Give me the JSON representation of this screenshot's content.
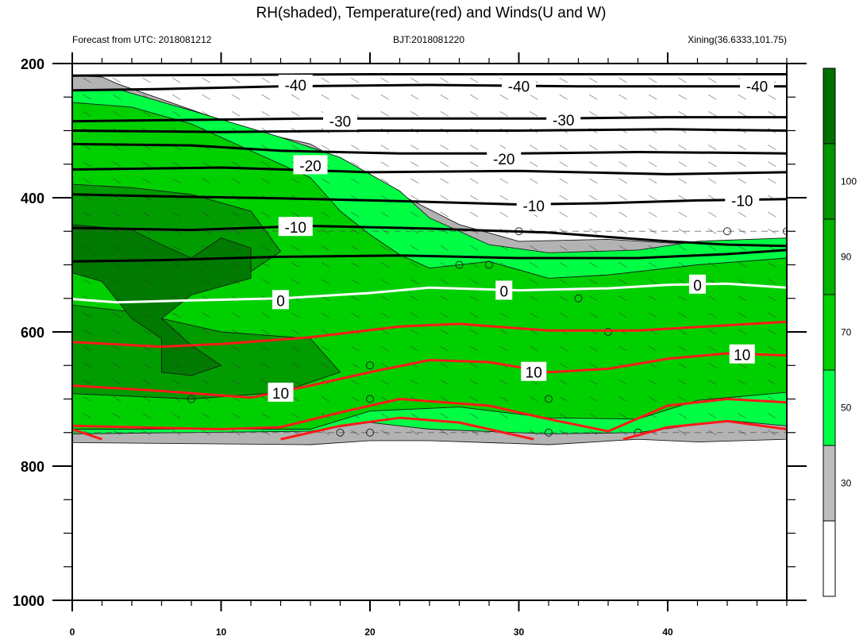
{
  "chart_data": {
    "type": "contour",
    "title": "RH(shaded), Temperature(red) and Winds(U and W)",
    "left_subtitle": "Forecast from UTC: 2018081212",
    "center_subtitle": "BJT:2018081220",
    "right_subtitle": "Xining(36.6333,101.75)",
    "xlim": [
      0,
      48
    ],
    "x_ticks": [
      0,
      10,
      20,
      30,
      40
    ],
    "ylim": [
      200,
      1000
    ],
    "y_ticks": [
      200,
      400,
      600,
      800,
      1000
    ],
    "colorbar": {
      "levels": [
        30,
        50,
        70,
        90,
        100
      ],
      "colors": [
        "#ffffff",
        "#bdbdbd",
        "#00ff44",
        "#00d000",
        "#00b400",
        "#009600",
        "#006f00"
      ]
    },
    "temperature_labels": [
      "-40",
      "-30",
      "-20",
      "-10",
      "0",
      "10"
    ],
    "temperature_contours": [
      {
        "label": "-40",
        "color": "black",
        "points": [
          [
            0,
            218
          ],
          [
            10,
            217
          ],
          [
            20,
            216
          ],
          [
            30,
            216
          ],
          [
            40,
            216
          ],
          [
            48,
            216
          ]
        ]
      },
      {
        "label": "-40",
        "color": "black",
        "points": [
          [
            0,
            240
          ],
          [
            6,
            238
          ],
          [
            14,
            234
          ],
          [
            24,
            232
          ],
          [
            34,
            234
          ],
          [
            42,
            234
          ],
          [
            48,
            234
          ]
        ]
      },
      {
        "label": "-30",
        "color": "black",
        "points": [
          [
            0,
            286
          ],
          [
            8,
            284
          ],
          [
            16,
            282
          ],
          [
            24,
            282
          ],
          [
            32,
            282
          ],
          [
            40,
            280
          ],
          [
            48,
            280
          ]
        ]
      },
      {
        "label": "-30",
        "color": "black",
        "points": [
          [
            0,
            300
          ],
          [
            10,
            302
          ],
          [
            20,
            300
          ],
          [
            30,
            300
          ],
          [
            40,
            298
          ],
          [
            48,
            300
          ]
        ]
      },
      {
        "label": "-20",
        "color": "black",
        "points": [
          [
            0,
            320
          ],
          [
            8,
            322
          ],
          [
            14,
            330
          ],
          [
            22,
            334
          ],
          [
            30,
            334
          ],
          [
            38,
            332
          ],
          [
            44,
            333
          ],
          [
            48,
            334
          ]
        ]
      },
      {
        "label": "-20",
        "color": "black",
        "points": [
          [
            0,
            358
          ],
          [
            10,
            355
          ],
          [
            20,
            362
          ],
          [
            30,
            360
          ],
          [
            40,
            365
          ],
          [
            48,
            362
          ]
        ]
      },
      {
        "label": "-10",
        "color": "black",
        "points": [
          [
            0,
            395
          ],
          [
            6,
            398
          ],
          [
            14,
            401
          ],
          [
            22,
            405
          ],
          [
            30,
            410
          ],
          [
            36,
            408
          ],
          [
            42,
            404
          ],
          [
            48,
            402
          ]
        ]
      },
      {
        "label": "-10",
        "color": "black",
        "points": [
          [
            0,
            445
          ],
          [
            8,
            448
          ],
          [
            16,
            442
          ],
          [
            24,
            446
          ],
          [
            32,
            452
          ],
          [
            40,
            465
          ],
          [
            44,
            470
          ],
          [
            48,
            472
          ]
        ]
      },
      {
        "label": "-10",
        "color": "black",
        "points": [
          [
            0,
            495
          ],
          [
            6,
            493
          ],
          [
            14,
            488
          ],
          [
            22,
            486
          ],
          [
            30,
            490
          ],
          [
            38,
            490
          ],
          [
            44,
            484
          ],
          [
            48,
            478
          ]
        ]
      },
      {
        "label": "0",
        "color": "white",
        "points": [
          [
            0,
            551
          ],
          [
            3,
            556
          ],
          [
            8,
            553
          ],
          [
            14,
            550
          ],
          [
            20,
            542
          ],
          [
            24,
            534
          ],
          [
            30,
            538
          ],
          [
            36,
            535
          ],
          [
            40,
            530
          ],
          [
            44,
            528
          ],
          [
            48,
            534
          ]
        ]
      },
      {
        "label": "10",
        "color": "red",
        "points": [
          [
            0,
            615
          ],
          [
            6,
            622
          ],
          [
            10,
            618
          ],
          [
            16,
            608
          ],
          [
            22,
            592
          ],
          [
            26,
            588
          ],
          [
            32,
            598
          ],
          [
            38,
            598
          ],
          [
            44,
            590
          ],
          [
            48,
            585
          ]
        ]
      },
      {
        "label": "10",
        "color": "red",
        "points": [
          [
            0,
            680
          ],
          [
            6,
            688
          ],
          [
            12,
            698
          ],
          [
            16,
            680
          ],
          [
            20,
            660
          ],
          [
            24,
            642
          ],
          [
            28,
            645
          ],
          [
            32,
            660
          ],
          [
            36,
            655
          ],
          [
            40,
            640
          ],
          [
            44,
            632
          ],
          [
            48,
            635
          ]
        ]
      },
      {
        "label": "10",
        "color": "red",
        "points": [
          [
            0,
            740
          ],
          [
            10,
            745
          ],
          [
            14,
            742
          ],
          [
            18,
            720
          ],
          [
            22,
            700
          ],
          [
            28,
            710
          ],
          [
            32,
            730
          ],
          [
            36,
            748
          ],
          [
            40,
            710
          ],
          [
            44,
            700
          ],
          [
            48,
            705
          ]
        ]
      },
      {
        "label": "10",
        "color": "red",
        "points": [
          [
            14,
            760
          ],
          [
            18,
            740
          ],
          [
            22,
            728
          ],
          [
            26,
            735
          ],
          [
            31,
            760
          ]
        ]
      },
      {
        "label": "10",
        "color": "red",
        "points": [
          [
            0,
            745
          ],
          [
            2,
            760
          ]
        ]
      },
      {
        "label": "10",
        "color": "red",
        "points": [
          [
            37,
            760
          ],
          [
            40,
            742
          ],
          [
            44,
            733
          ],
          [
            48,
            745
          ]
        ]
      }
    ],
    "rh_regions": [
      {
        "class": "30-50",
        "points": [
          [
            0,
            218
          ],
          [
            2,
            220
          ],
          [
            3,
            230
          ],
          [
            12,
            300
          ],
          [
            16,
            320
          ],
          [
            22,
            395
          ],
          [
            26,
            440
          ],
          [
            30,
            465
          ],
          [
            36,
            462
          ],
          [
            42,
            470
          ],
          [
            48,
            468
          ],
          [
            48,
            760
          ],
          [
            42,
            764
          ],
          [
            38,
            760
          ],
          [
            32,
            768
          ],
          [
            24,
            762
          ],
          [
            20,
            762
          ],
          [
            16,
            768
          ],
          [
            0,
            765
          ]
        ]
      },
      {
        "class": "50-70",
        "points": [
          [
            0,
            240
          ],
          [
            3,
            238
          ],
          [
            8,
            270
          ],
          [
            14,
            310
          ],
          [
            18,
            340
          ],
          [
            22,
            390
          ],
          [
            24,
            430
          ],
          [
            28,
            470
          ],
          [
            32,
            482
          ],
          [
            38,
            478
          ],
          [
            42,
            465
          ],
          [
            48,
            460
          ],
          [
            48,
            740
          ],
          [
            44,
            732
          ],
          [
            38,
            750
          ],
          [
            32,
            752
          ],
          [
            24,
            745
          ],
          [
            20,
            735
          ],
          [
            16,
            748
          ],
          [
            0,
            752
          ]
        ]
      },
      {
        "class": "70-90",
        "points": [
          [
            0,
            258
          ],
          [
            4,
            265
          ],
          [
            8,
            290
          ],
          [
            12,
            330
          ],
          [
            16,
            370
          ],
          [
            18,
            420
          ],
          [
            20,
            455
          ],
          [
            22,
            485
          ],
          [
            24,
            505
          ],
          [
            28,
            495
          ],
          [
            32,
            520
          ],
          [
            36,
            515
          ],
          [
            42,
            500
          ],
          [
            48,
            490
          ],
          [
            48,
            690
          ],
          [
            42,
            702
          ],
          [
            38,
            730
          ],
          [
            32,
            728
          ],
          [
            26,
            712
          ],
          [
            20,
            718
          ],
          [
            16,
            745
          ],
          [
            0,
            745
          ]
        ]
      },
      {
        "class": "90-100",
        "points": [
          [
            0,
            380
          ],
          [
            4,
            385
          ],
          [
            8,
            395
          ],
          [
            12,
            420
          ],
          [
            14,
            480
          ],
          [
            12,
            510
          ],
          [
            8,
            520
          ],
          [
            4,
            515
          ],
          [
            0,
            505
          ]
        ]
      },
      {
        "class": "90-100",
        "points": [
          [
            0,
            560
          ],
          [
            4,
            570
          ],
          [
            10,
            600
          ],
          [
            16,
            610
          ],
          [
            18,
            660
          ],
          [
            14,
            690
          ],
          [
            8,
            700
          ],
          [
            0,
            692
          ]
        ]
      },
      {
        "class": "100+",
        "points": [
          [
            0,
            440
          ],
          [
            4,
            448
          ],
          [
            6,
            470
          ],
          [
            8,
            490
          ],
          [
            10,
            460
          ],
          [
            12,
            475
          ],
          [
            12,
            520
          ],
          [
            8,
            545
          ],
          [
            6,
            580
          ],
          [
            8,
            620
          ],
          [
            10,
            650
          ],
          [
            8,
            665
          ],
          [
            6,
            660
          ],
          [
            6,
            610
          ],
          [
            4,
            580
          ],
          [
            2,
            525
          ],
          [
            0,
            512
          ]
        ]
      }
    ]
  }
}
